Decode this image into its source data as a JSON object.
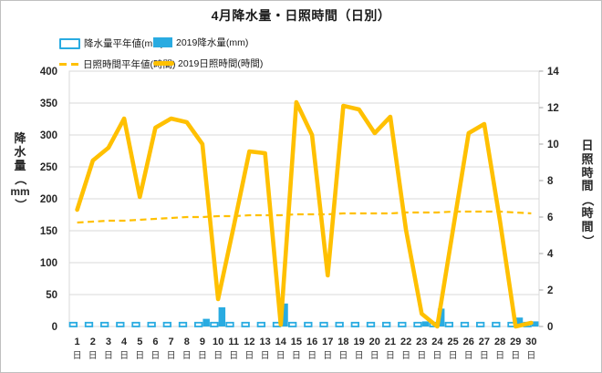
{
  "chart_data": {
    "type": "bar",
    "subtype": "combo-bar-line-dual-axis",
    "title": "4月降水量・日照時間（日別）",
    "x": [
      1,
      2,
      3,
      4,
      5,
      6,
      7,
      8,
      9,
      10,
      11,
      12,
      13,
      14,
      15,
      16,
      17,
      18,
      19,
      20,
      21,
      22,
      23,
      24,
      25,
      26,
      27,
      28,
      29,
      30
    ],
    "x_suffix": "日",
    "grid": true,
    "legend_position": "top-left",
    "left_axis": {
      "label": "降水量（mm）",
      "min": 0,
      "max": 400,
      "step": 50
    },
    "right_axis": {
      "label": "日照時間（時間）",
      "min": 0,
      "max": 14,
      "step": 2
    },
    "series": [
      {
        "name": "降水量平年値(mm)",
        "type": "bar-outline",
        "axis": "left",
        "color": "#29abe1",
        "values": [
          6,
          6,
          6,
          6,
          6,
          6,
          6,
          6,
          6,
          6,
          6,
          6,
          6,
          6,
          6,
          6,
          6,
          6,
          6,
          6,
          6,
          6,
          6,
          6,
          6,
          6,
          6,
          6,
          6,
          6
        ]
      },
      {
        "name": "2019降水量(mm)",
        "type": "bar",
        "axis": "left",
        "color": "#29abe1",
        "values": [
          0,
          0,
          0,
          0,
          0,
          0,
          0,
          0,
          12,
          30,
          0,
          0,
          0,
          36,
          0,
          0,
          0,
          0,
          0,
          0,
          0,
          0,
          8,
          28,
          0,
          0,
          0,
          0,
          14,
          8
        ]
      },
      {
        "name": "日照時間平年値(時間)",
        "type": "line-dashed",
        "axis": "right",
        "color": "#ffc000",
        "values": [
          5.7,
          5.75,
          5.8,
          5.8,
          5.85,
          5.9,
          5.95,
          6.0,
          6.0,
          6.05,
          6.05,
          6.1,
          6.1,
          6.1,
          6.15,
          6.15,
          6.15,
          6.2,
          6.2,
          6.2,
          6.2,
          6.25,
          6.25,
          6.25,
          6.3,
          6.3,
          6.3,
          6.3,
          6.25,
          6.2
        ]
      },
      {
        "name": "2019日照時間(時間)",
        "type": "line",
        "axis": "right",
        "color": "#ffc000",
        "values": [
          6.4,
          9.1,
          9.8,
          11.4,
          7.1,
          10.9,
          11.4,
          11.2,
          10.0,
          1.5,
          5.5,
          9.6,
          9.5,
          0.1,
          12.3,
          10.5,
          2.8,
          12.1,
          11.9,
          10.6,
          11.5,
          5.3,
          0.7,
          0,
          5.3,
          10.6,
          11.1,
          5.8,
          0,
          0.2
        ]
      }
    ]
  },
  "legend": [
    {
      "label": "降水量平年値(mm)"
    },
    {
      "label": "2019降水量(mm)"
    },
    {
      "label": "日照時間平年値(時間)"
    },
    {
      "label": "2019日照時間(時間)"
    }
  ],
  "colors": {
    "bar_blue": "#29abe1",
    "line_gold": "#ffc000",
    "grid": "#d9d9d9",
    "axis": "#a6a6a6",
    "text": "#262626"
  }
}
